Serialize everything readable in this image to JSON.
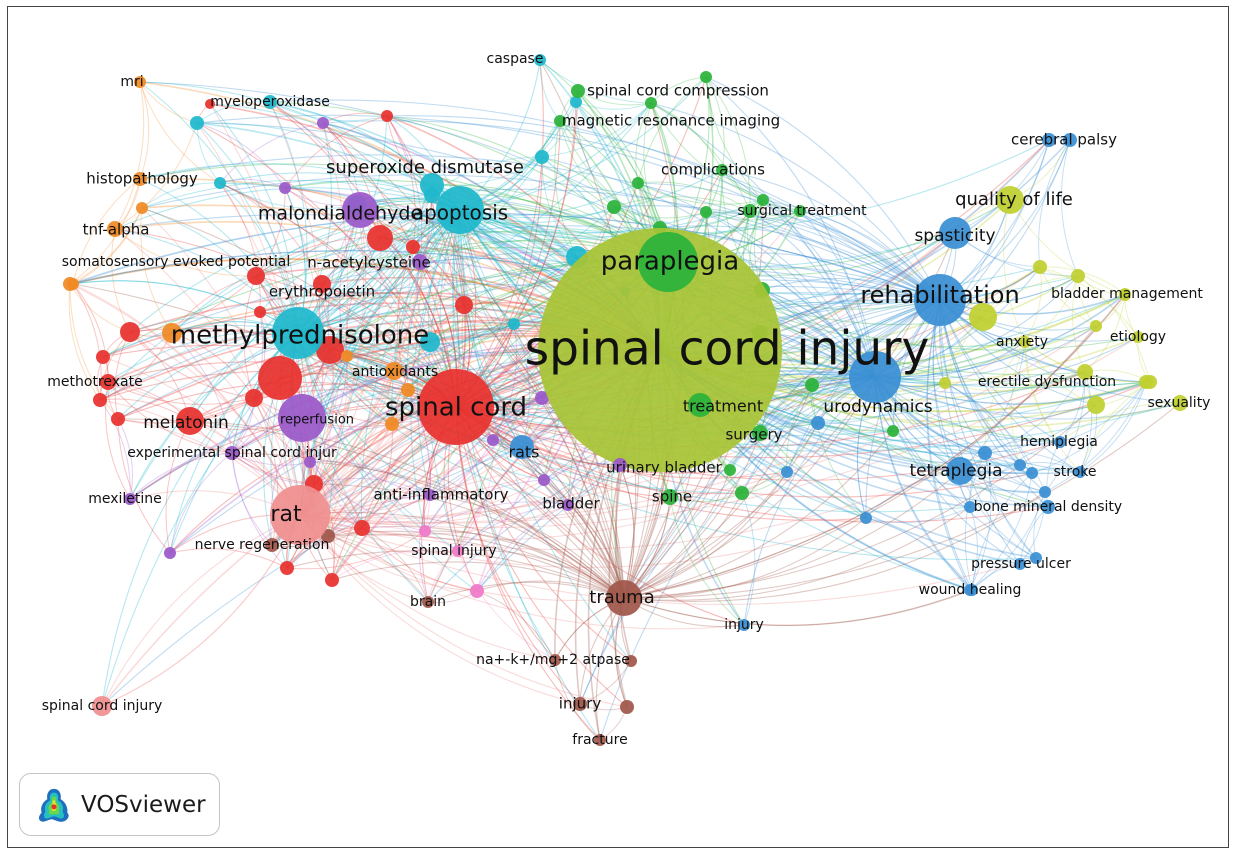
{
  "colors": {
    "red": "#e8312e",
    "green": "#2bb33a",
    "blue": "#3a8fd4",
    "yellowgreen": "#bfd02f",
    "purple": "#9b59c9",
    "cyan": "#1fb8cc",
    "orange": "#f08a25",
    "brown": "#a0574a",
    "pink": "#f07ac8",
    "salmon": "#f08f8f",
    "main": "#a8c436"
  },
  "clusters": [
    "red",
    "green",
    "blue",
    "yellowgreen",
    "purple",
    "cyan",
    "orange",
    "brown",
    "pink",
    "salmon"
  ],
  "nodes": [
    {
      "id": "sci",
      "label": "spinal cord injury",
      "cluster": "main",
      "weight": 100
    },
    {
      "id": "paraplegia",
      "label": "paraplegia",
      "cluster": "green",
      "weight": 30
    },
    {
      "id": "rehabilitation",
      "label": "rehabilitation",
      "cluster": "blue",
      "weight": 30
    },
    {
      "id": "spinal_cord",
      "label": "spinal cord",
      "cluster": "red",
      "weight": 40
    },
    {
      "id": "methylprednisolone",
      "label": "methylprednisolone",
      "cluster": "cyan",
      "weight": 38
    },
    {
      "id": "rat",
      "label": "rat",
      "cluster": "salmon",
      "weight": 32
    },
    {
      "id": "apoptosis",
      "label": "apoptosis",
      "cluster": "cyan",
      "weight": 22
    },
    {
      "id": "malondialdehyde",
      "label": "malondialdehyde",
      "cluster": "purple",
      "weight": 16
    },
    {
      "id": "superoxide_dismutase",
      "label": "superoxide dismutase",
      "cluster": "cyan",
      "weight": 12
    },
    {
      "id": "quality_of_life",
      "label": "quality of life",
      "cluster": "yellowgreen",
      "weight": 14
    },
    {
      "id": "spasticity",
      "label": "spasticity",
      "cluster": "blue",
      "weight": 16
    },
    {
      "id": "urodynamics",
      "label": "urodynamics",
      "cluster": "blue",
      "weight": 26
    },
    {
      "id": "tetraplegia",
      "label": "tetraplegia",
      "cluster": "blue",
      "weight": 14
    },
    {
      "id": "trauma",
      "label": "trauma",
      "cluster": "brown",
      "weight": 18
    },
    {
      "id": "rats",
      "label": "rats",
      "cluster": "blue",
      "weight": 12
    },
    {
      "id": "melatonin",
      "label": "melatonin",
      "cluster": "red",
      "weight": 14
    },
    {
      "id": "reperfusion",
      "label": "reperfusion",
      "cluster": "purple",
      "weight": 24
    },
    {
      "id": "treatment",
      "label": "treatment",
      "cluster": "green",
      "weight": 12
    },
    {
      "id": "surgery",
      "label": "surgery",
      "cluster": "green",
      "weight": 8
    },
    {
      "id": "spine",
      "label": "spine",
      "cluster": "green",
      "weight": 8
    },
    {
      "id": "urinary_bladder",
      "label": "urinary bladder",
      "cluster": "purple",
      "weight": 7
    },
    {
      "id": "bladder",
      "label": "bladder",
      "cluster": "purple",
      "weight": 6
    },
    {
      "id": "anti_inflammatory",
      "label": "anti-inflammatory",
      "cluster": "purple",
      "weight": 6
    },
    {
      "id": "antioxidants",
      "label": "antioxidants",
      "cluster": "orange",
      "weight": 9
    },
    {
      "id": "erythropoietin",
      "label": "erythropoietin",
      "cluster": "red",
      "weight": 9
    },
    {
      "id": "n_acetylcysteine",
      "label": "n-acetylcysteine",
      "cluster": "purple",
      "weight": 8
    },
    {
      "id": "somatosensory",
      "label": "somatosensory evoked potential",
      "cluster": "orange",
      "weight": 7
    },
    {
      "id": "tnf_alpha",
      "label": "tnf-alpha",
      "cluster": "orange",
      "weight": 8
    },
    {
      "id": "histopathology",
      "label": "histopathology",
      "cluster": "orange",
      "weight": 7
    },
    {
      "id": "mri",
      "label": "mri",
      "cluster": "orange",
      "weight": 6
    },
    {
      "id": "myeloperoxidase",
      "label": "myeloperoxidase",
      "cluster": "cyan",
      "weight": 7
    },
    {
      "id": "caspase",
      "label": "caspase",
      "cluster": "cyan",
      "weight": 6
    },
    {
      "id": "spinal_cord_compression",
      "label": "spinal cord compression",
      "cluster": "green",
      "weight": 7
    },
    {
      "id": "mri_full",
      "label": "magnetic resonance imaging",
      "cluster": "green",
      "weight": 6
    },
    {
      "id": "complications",
      "label": "complications",
      "cluster": "green",
      "weight": 6
    },
    {
      "id": "surgical_treatment",
      "label": "surgical treatment",
      "cluster": "green",
      "weight": 7
    },
    {
      "id": "cerebral_palsy",
      "label": "cerebral palsy",
      "cluster": "blue",
      "weight": 7
    },
    {
      "id": "bladder_management",
      "label": "bladder management",
      "cluster": "yellowgreen",
      "weight": 6
    },
    {
      "id": "etiology",
      "label": "etiology",
      "cluster": "yellowgreen",
      "weight": 6
    },
    {
      "id": "anxiety",
      "label": "anxiety",
      "cluster": "yellowgreen",
      "weight": 6
    },
    {
      "id": "erectile_dysfunction",
      "label": "erectile dysfunction",
      "cluster": "yellowgreen",
      "weight": 7
    },
    {
      "id": "sexuality",
      "label": "sexuality",
      "cluster": "yellowgreen",
      "weight": 8
    },
    {
      "id": "hemiplegia",
      "label": "hemiplegia",
      "cluster": "blue",
      "weight": 6
    },
    {
      "id": "stroke",
      "label": "stroke",
      "cluster": "blue",
      "weight": 6
    },
    {
      "id": "bone_mineral_density",
      "label": "bone mineral density",
      "cluster": "blue",
      "weight": 7
    },
    {
      "id": "pressure_ulcer",
      "label": "pressure ulcer",
      "cluster": "blue",
      "weight": 6
    },
    {
      "id": "wound_healing",
      "label": "wound healing",
      "cluster": "blue",
      "weight": 6
    },
    {
      "id": "injury_blue",
      "label": "injury",
      "cluster": "blue",
      "weight": 6
    },
    {
      "id": "methotrexate",
      "label": "methotrexate",
      "cluster": "red",
      "weight": 8
    },
    {
      "id": "experimental_sci",
      "label": "experimental spinal cord injur",
      "cluster": "purple",
      "weight": 7
    },
    {
      "id": "mexiletine",
      "label": "mexiletine",
      "cluster": "purple",
      "weight": 6
    },
    {
      "id": "nerve_regeneration",
      "label": "nerve regeneration",
      "cluster": "brown",
      "weight": 7
    },
    {
      "id": "spinal_injury",
      "label": "spinal injury",
      "cluster": "pink",
      "weight": 6
    },
    {
      "id": "brain",
      "label": "brain",
      "cluster": "brown",
      "weight": 6
    },
    {
      "id": "na_atpase",
      "label": "na+-k+/mg+2 atpase",
      "cluster": "brown",
      "weight": 6
    },
    {
      "id": "injury_brown",
      "label": "injury",
      "cluster": "brown",
      "weight": 7
    },
    {
      "id": "fracture",
      "label": "fracture",
      "cluster": "brown",
      "weight": 6
    },
    {
      "id": "sci_salmon",
      "label": "spinal cord injury",
      "cluster": "salmon",
      "weight": 10
    }
  ],
  "badge": {
    "label": "VOSviewer",
    "icon": "vosviewer-logo-icon"
  }
}
